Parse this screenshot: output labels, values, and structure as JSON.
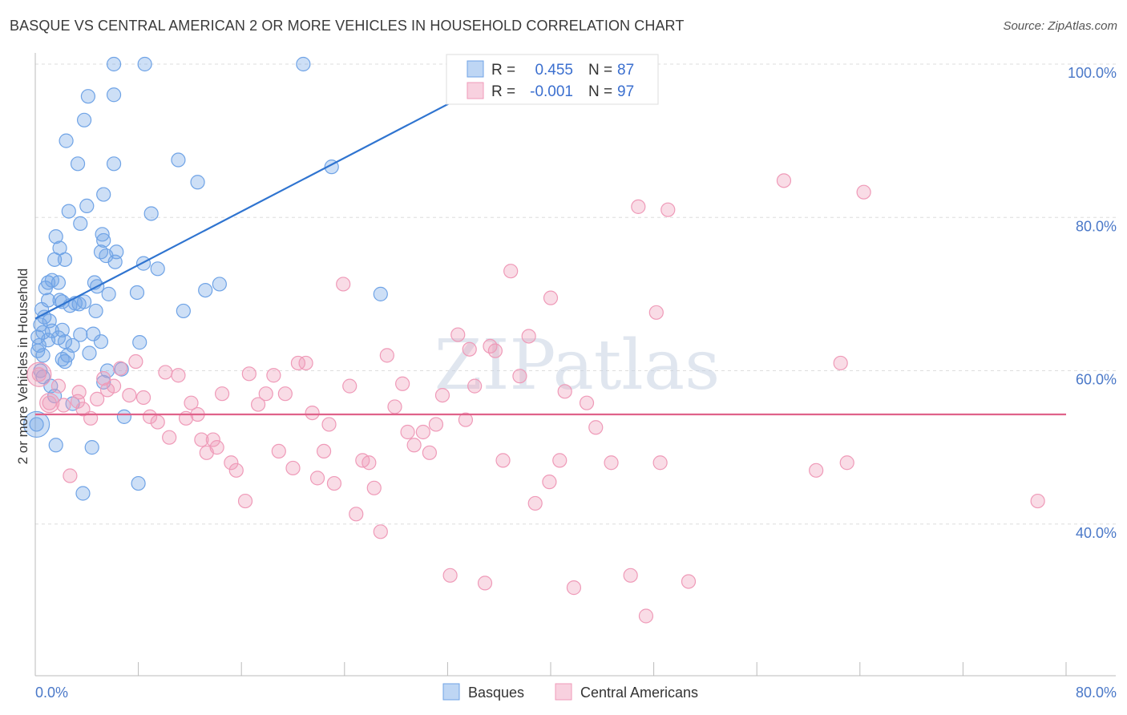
{
  "title": "BASQUE VS CENTRAL AMERICAN 2 OR MORE VEHICLES IN HOUSEHOLD CORRELATION CHART",
  "source": "Source: ZipAtlas.com",
  "chart_data": {
    "type": "scatter",
    "ylabel": "2 or more Vehicles in Household",
    "xlim": [
      0,
      80
    ],
    "ylim": [
      20,
      102
    ],
    "x_tick_labels": [
      "0.0%",
      "80.0%"
    ],
    "y_ticks": [
      40,
      60,
      80,
      100
    ],
    "y_tick_labels": [
      "40.0%",
      "60.0%",
      "80.0%",
      "100.0%"
    ],
    "grid": true,
    "legend": {
      "placement": "top-center",
      "rows": [
        {
          "r_label": "R =",
          "r_value": "0.455",
          "n_label": "N =",
          "n_value": "87"
        },
        {
          "r_label": "R =",
          "r_value": "-0.001",
          "n_label": "N =",
          "n_value": "97"
        }
      ]
    },
    "watermark": "ZIPatlas",
    "series": [
      {
        "name": "Basques",
        "color": "#6fa3e6",
        "line_color": "#2f74d0",
        "trend": {
          "x": [
            0,
            38
          ],
          "y": [
            66.8,
            100
          ]
        },
        "points": [
          [
            6.1,
            100
          ],
          [
            8.5,
            100
          ],
          [
            20.8,
            100
          ],
          [
            33.0,
            98.2
          ],
          [
            4.1,
            95.8
          ],
          [
            6.1,
            96
          ],
          [
            3.8,
            92.7
          ],
          [
            2.4,
            90.0
          ],
          [
            3.3,
            87.0
          ],
          [
            6.1,
            87.0
          ],
          [
            11.1,
            87.5
          ],
          [
            12.6,
            84.6
          ],
          [
            23.0,
            86.6
          ],
          [
            5.3,
            83.0
          ],
          [
            4.0,
            81.5
          ],
          [
            2.6,
            80.8
          ],
          [
            9.0,
            80.5
          ],
          [
            3.5,
            79.2
          ],
          [
            1.6,
            77.5
          ],
          [
            5.2,
            77.8
          ],
          [
            1.9,
            76.0
          ],
          [
            5.3,
            77.0
          ],
          [
            6.3,
            75.5
          ],
          [
            1.5,
            74.5
          ],
          [
            2.3,
            74.5
          ],
          [
            5.1,
            75.5
          ],
          [
            5.5,
            75.0
          ],
          [
            6.2,
            74.2
          ],
          [
            8.4,
            74.0
          ],
          [
            9.5,
            73.3
          ],
          [
            1.0,
            71.5
          ],
          [
            1.3,
            71.8
          ],
          [
            1.8,
            71.5
          ],
          [
            4.6,
            71.5
          ],
          [
            4.8,
            71.0
          ],
          [
            13.2,
            70.5
          ],
          [
            14.3,
            71.3
          ],
          [
            0.8,
            70.8
          ],
          [
            5.7,
            70.0
          ],
          [
            7.9,
            70.2
          ],
          [
            26.8,
            70.0
          ],
          [
            1.0,
            69.2
          ],
          [
            1.9,
            69.2
          ],
          [
            2.1,
            69.0
          ],
          [
            2.7,
            68.5
          ],
          [
            3.1,
            68.8
          ],
          [
            3.4,
            68.7
          ],
          [
            4.7,
            67.8
          ],
          [
            11.5,
            67.8
          ],
          [
            0.5,
            68.0
          ],
          [
            0.7,
            67.0
          ],
          [
            1.1,
            66.5
          ],
          [
            0.6,
            65.0
          ],
          [
            1.3,
            65.2
          ],
          [
            1.8,
            64.3
          ],
          [
            2.1,
            65.3
          ],
          [
            3.5,
            64.7
          ],
          [
            0.2,
            64.4
          ],
          [
            2.3,
            63.8
          ],
          [
            0.3,
            63.3
          ],
          [
            2.9,
            63.3
          ],
          [
            5.1,
            63.8
          ],
          [
            8.1,
            63.7
          ],
          [
            0.2,
            62.6
          ],
          [
            4.2,
            62.3
          ],
          [
            2.3,
            61.2
          ],
          [
            2.1,
            61.5
          ],
          [
            0.6,
            59.2
          ],
          [
            5.6,
            60.0
          ],
          [
            6.7,
            60.2
          ],
          [
            5.3,
            58.5
          ],
          [
            1.5,
            56.7
          ],
          [
            2.9,
            55.7
          ],
          [
            6.9,
            54.0
          ],
          [
            0.1,
            53.0
          ],
          [
            1.6,
            50.3
          ],
          [
            4.4,
            50.0
          ],
          [
            3.7,
            44.0
          ],
          [
            8.0,
            45.3
          ],
          [
            0.4,
            66.0
          ],
          [
            1.0,
            64.0
          ],
          [
            3.8,
            69.0
          ],
          [
            2.5,
            62.0
          ],
          [
            0.6,
            62.0
          ],
          [
            4.5,
            64.8
          ],
          [
            0.4,
            60.0
          ],
          [
            1.2,
            58.0
          ]
        ]
      },
      {
        "name": "Central Americans",
        "color": "#ef9ab8",
        "line_color": "#e0628a",
        "trend": {
          "x": [
            0,
            80
          ],
          "y": [
            54.3,
            54.3
          ]
        },
        "points": [
          [
            0.3,
            59.5
          ],
          [
            1.1,
            55.8
          ],
          [
            1.8,
            58.0
          ],
          [
            2.2,
            55.5
          ],
          [
            2.7,
            46.3
          ],
          [
            3.3,
            56.0
          ],
          [
            3.4,
            57.2
          ],
          [
            3.7,
            55.0
          ],
          [
            4.3,
            53.8
          ],
          [
            4.8,
            56.3
          ],
          [
            5.3,
            59.0
          ],
          [
            5.6,
            57.5
          ],
          [
            6.1,
            58.0
          ],
          [
            6.6,
            60.3
          ],
          [
            7.3,
            56.8
          ],
          [
            7.8,
            61.2
          ],
          [
            8.4,
            56.5
          ],
          [
            8.9,
            54.0
          ],
          [
            9.5,
            53.3
          ],
          [
            10.1,
            59.8
          ],
          [
            10.4,
            51.3
          ],
          [
            11.1,
            59.4
          ],
          [
            11.7,
            53.8
          ],
          [
            12.1,
            55.8
          ],
          [
            12.6,
            54.3
          ],
          [
            12.9,
            51.0
          ],
          [
            13.3,
            49.3
          ],
          [
            13.8,
            51.0
          ],
          [
            14.1,
            50.0
          ],
          [
            14.5,
            57.0
          ],
          [
            15.2,
            48.0
          ],
          [
            15.6,
            47.0
          ],
          [
            16.3,
            43.0
          ],
          [
            16.6,
            59.6
          ],
          [
            17.3,
            55.6
          ],
          [
            17.9,
            57.0
          ],
          [
            18.5,
            59.4
          ],
          [
            18.9,
            49.5
          ],
          [
            19.4,
            57.0
          ],
          [
            20.0,
            47.3
          ],
          [
            20.4,
            61.0
          ],
          [
            21.0,
            61.0
          ],
          [
            21.5,
            54.5
          ],
          [
            21.9,
            46.0
          ],
          [
            22.4,
            49.5
          ],
          [
            22.8,
            53.0
          ],
          [
            23.2,
            45.3
          ],
          [
            23.9,
            71.3
          ],
          [
            24.4,
            58.0
          ],
          [
            24.9,
            41.3
          ],
          [
            25.4,
            48.3
          ],
          [
            25.9,
            48.0
          ],
          [
            26.3,
            44.7
          ],
          [
            26.8,
            39.0
          ],
          [
            27.3,
            62.0
          ],
          [
            27.9,
            55.3
          ],
          [
            28.5,
            58.3
          ],
          [
            28.9,
            52.0
          ],
          [
            29.4,
            50.3
          ],
          [
            30.1,
            52.0
          ],
          [
            30.6,
            49.3
          ],
          [
            31.1,
            53.0
          ],
          [
            31.6,
            56.8
          ],
          [
            32.2,
            33.3
          ],
          [
            32.8,
            64.7
          ],
          [
            33.4,
            53.6
          ],
          [
            33.7,
            62.8
          ],
          [
            34.1,
            58.0
          ],
          [
            34.9,
            32.3
          ],
          [
            35.3,
            63.2
          ],
          [
            35.7,
            62.6
          ],
          [
            36.3,
            48.3
          ],
          [
            36.9,
            73.0
          ],
          [
            37.6,
            59.3
          ],
          [
            38.3,
            64.5
          ],
          [
            38.8,
            42.7
          ],
          [
            39.9,
            45.5
          ],
          [
            40.7,
            48.3
          ],
          [
            41.1,
            57.3
          ],
          [
            41.8,
            31.7
          ],
          [
            42.8,
            55.8
          ],
          [
            43.5,
            52.6
          ],
          [
            44.7,
            48.0
          ],
          [
            46.2,
            33.3
          ],
          [
            46.8,
            81.4
          ],
          [
            47.4,
            28.0
          ],
          [
            48.2,
            67.6
          ],
          [
            49.1,
            81.0
          ],
          [
            48.5,
            48.0
          ],
          [
            50.7,
            32.5
          ],
          [
            58.1,
            84.8
          ],
          [
            60.6,
            47.0
          ],
          [
            62.5,
            61.0
          ],
          [
            63.0,
            48.0
          ],
          [
            64.3,
            83.3
          ],
          [
            77.8,
            43.0
          ],
          [
            40.0,
            69.5
          ]
        ]
      }
    ]
  },
  "bottom_legend": [
    {
      "label": "Basques",
      "color": "#6fa3e6"
    },
    {
      "label": "Central Americans",
      "color": "#ef9ab8"
    }
  ]
}
